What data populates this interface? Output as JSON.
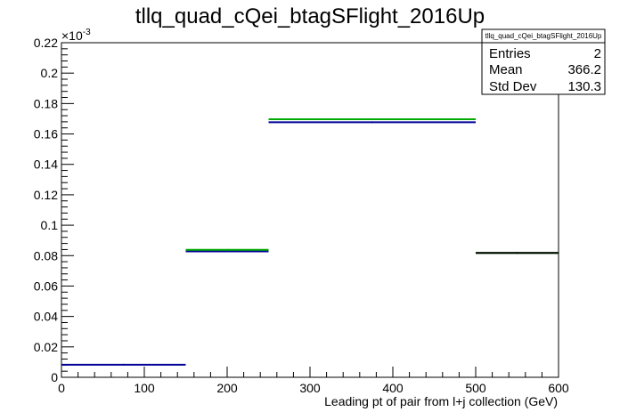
{
  "chart_data": {
    "type": "histogram",
    "title": "tllq_quad_cQei_btagSFlight_2016Up",
    "xlabel": "Leading pt of pair from l+j collection (GeV)",
    "ylabel": "",
    "xlim": [
      0,
      600
    ],
    "ylim": [
      0,
      0.22
    ],
    "y_multiplier": "×10",
    "y_multiplier_exp": "-3",
    "x_ticks": [
      0,
      100,
      200,
      300,
      400,
      500,
      600
    ],
    "x_tick_labels": [
      "0",
      "100",
      "200",
      "300",
      "400",
      "500",
      "600"
    ],
    "y_ticks": [
      0,
      0.02,
      0.04,
      0.06,
      0.08,
      0.1,
      0.12,
      0.14,
      0.16,
      0.18,
      0.2,
      0.22
    ],
    "y_tick_labels": [
      "0",
      "0.02",
      "0.04",
      "0.06",
      "0.08",
      "0.1",
      "0.12",
      "0.14",
      "0.16",
      "0.18",
      "0.2",
      "0.22"
    ],
    "bins": [
      0,
      150,
      250,
      500,
      600
    ],
    "series": [
      {
        "color": "#000099",
        "values": [
          0.0083,
          0.0828,
          0.1677,
          null
        ]
      },
      {
        "color": "#00aa00",
        "values": [
          null,
          0.0838,
          0.1697,
          0.0818
        ]
      },
      {
        "color": "#000000",
        "values": [
          null,
          null,
          null,
          0.0818
        ]
      }
    ],
    "stats_box": {
      "title": "tllq_quad_cQei_btagSFlight_2016Up",
      "rows": [
        {
          "label": "Entries",
          "value": "2"
        },
        {
          "label": "Mean",
          "value": "366.2"
        },
        {
          "label": "Std Dev",
          "value": "130.3"
        }
      ]
    }
  }
}
